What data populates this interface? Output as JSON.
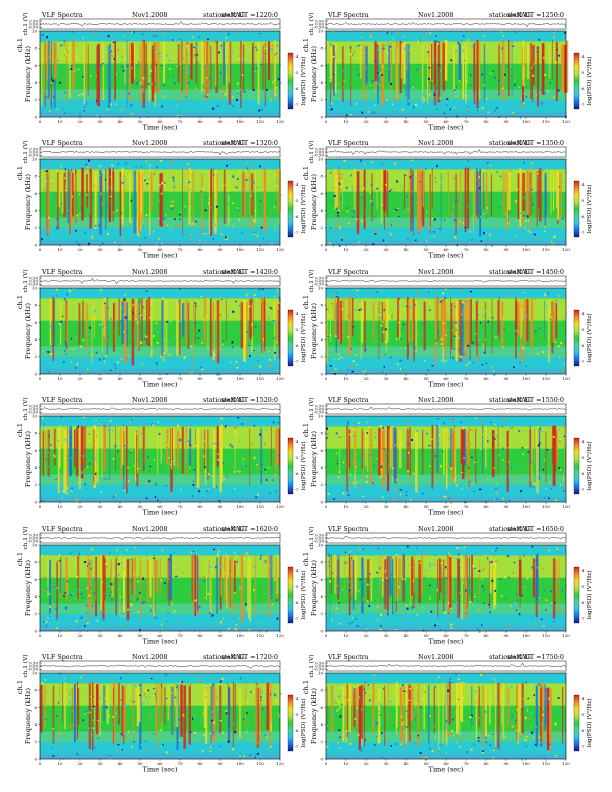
{
  "chart_data": [
    {
      "type": "heatmap",
      "title": {
        "label": "VLF  Spectra",
        "date": "Nov1.2008",
        "station": "station=KAG",
        "start": "start  UT  =1220:0"
      },
      "xlabel": "Time  (sec)",
      "ylabel": "Frequency  (kHz)",
      "ylabel_top": "ch.1",
      "top_ylabel": "ch.1 (V)",
      "top_ticks": [
        "0.50",
        "0.00",
        "-0.50"
      ],
      "xlim": [
        0,
        120
      ],
      "ylim": [
        0,
        10
      ],
      "colorbar_label": "log(PSD) (V²/Hz)",
      "colorbar_ticks": [
        "-4",
        "-5",
        "-6",
        "-7"
      ],
      "colormap": [
        "#0a1a9a",
        "#1f6fe0",
        "#27c7f0",
        "#52d09a",
        "#2ecc40",
        "#b8e23a",
        "#f0e020",
        "#f08a20",
        "#d62020"
      ]
    },
    {
      "type": "heatmap",
      "title": {
        "label": "VLF  Spectra",
        "date": "Nov1.2008",
        "station": "station=KAG",
        "start": "start  UT  =1250:0"
      },
      "xlabel": "Time  (sec)",
      "ylabel": "Frequency  (kHz)",
      "ylabel_top": "ch.1",
      "top_ylabel": "ch.1 (V)",
      "top_ticks": [
        "0.50",
        "0.00",
        "-0.50"
      ],
      "xlim": [
        0,
        120
      ],
      "ylim": [
        0,
        10
      ],
      "colorbar_label": "log(PSD) (V²/Hz)",
      "colorbar_ticks": [
        "-4",
        "-5",
        "-6",
        "-7"
      ],
      "colormap": [
        "#0a1a9a",
        "#1f6fe0",
        "#27c7f0",
        "#52d09a",
        "#2ecc40",
        "#b8e23a",
        "#f0e020",
        "#f08a20",
        "#d62020"
      ]
    },
    {
      "type": "heatmap",
      "title": {
        "label": "VLF  Spectra",
        "date": "Nov1.2008",
        "station": "station=KAG",
        "start": "start  UT  =1320:0"
      },
      "xlabel": "Time  (sec)",
      "ylabel": "Frequency  (kHz)",
      "ylabel_top": "ch.1",
      "top_ylabel": "ch.1 (V)",
      "top_ticks": [
        "0.50",
        "0.00",
        "-0.50"
      ],
      "xlim": [
        0,
        120
      ],
      "ylim": [
        0,
        10
      ],
      "colorbar_label": "log(PSD) (V²/Hz)",
      "colorbar_ticks": [
        "-4",
        "-5",
        "-6",
        "-7"
      ],
      "colormap": [
        "#0a1a9a",
        "#1f6fe0",
        "#27c7f0",
        "#52d09a",
        "#2ecc40",
        "#b8e23a",
        "#f0e020",
        "#f08a20",
        "#d62020"
      ]
    },
    {
      "type": "heatmap",
      "title": {
        "label": "VLF  Spectra",
        "date": "Nov1.2008",
        "station": "station=KAG",
        "start": "start  UT  =1350:0"
      },
      "xlabel": "Time  (sec)",
      "ylabel": "Frequency  (kHz)",
      "ylabel_top": "ch.1",
      "top_ylabel": "ch.1 (V)",
      "top_ticks": [
        "0.50",
        "0.00",
        "-0.50"
      ],
      "xlim": [
        0,
        120
      ],
      "ylim": [
        0,
        10
      ],
      "colorbar_label": "log(PSD) (V²/Hz)",
      "colorbar_ticks": [
        "-4",
        "-5",
        "-6",
        "-7"
      ],
      "colormap": [
        "#0a1a9a",
        "#1f6fe0",
        "#27c7f0",
        "#52d09a",
        "#2ecc40",
        "#b8e23a",
        "#f0e020",
        "#f08a20",
        "#d62020"
      ]
    },
    {
      "type": "heatmap",
      "title": {
        "label": "VLF  Spectra",
        "date": "Nov1.2008",
        "station": "station=KAG",
        "start": "start  UT  =1420:0"
      },
      "xlabel": "Time  (sec)",
      "ylabel": "Frequency  (kHz)",
      "ylabel_top": "ch.1",
      "top_ylabel": "ch.1 (V)",
      "top_ticks": [
        "0.50",
        "0.00",
        "-0.50"
      ],
      "xlim": [
        0,
        120
      ],
      "ylim": [
        0,
        10
      ],
      "colorbar_label": "log(PSD) (V²/Hz)",
      "colorbar_ticks": [
        "-4",
        "-5",
        "-6",
        "-7"
      ],
      "colormap": [
        "#0a1a9a",
        "#1f6fe0",
        "#27c7f0",
        "#52d09a",
        "#2ecc40",
        "#b8e23a",
        "#f0e020",
        "#f08a20",
        "#d62020"
      ]
    },
    {
      "type": "heatmap",
      "title": {
        "label": "VLF  Spectra",
        "date": "Nov1.2008",
        "station": "station=KAG",
        "start": "start  UT  =1450:0"
      },
      "xlabel": "Time  (sec)",
      "ylabel": "Frequency  (kHz)",
      "ylabel_top": "ch.1",
      "top_ylabel": "ch.1 (V)",
      "top_ticks": [
        "0.50",
        "0.00",
        "-0.50"
      ],
      "xlim": [
        0,
        120
      ],
      "ylim": [
        0,
        10
      ],
      "colorbar_label": "log(PSD) (V²/Hz)",
      "colorbar_ticks": [
        "-4",
        "-5",
        "-6",
        "-7"
      ],
      "colormap": [
        "#0a1a9a",
        "#1f6fe0",
        "#27c7f0",
        "#52d09a",
        "#2ecc40",
        "#b8e23a",
        "#f0e020",
        "#f08a20",
        "#d62020"
      ]
    },
    {
      "type": "heatmap",
      "title": {
        "label": "VLF  Spectra",
        "date": "Nov1.2008",
        "station": "station=KAG",
        "start": "start  UT  =1520:0"
      },
      "xlabel": "Time  (sec)",
      "ylabel": "Frequency  (kHz)",
      "ylabel_top": "ch.1",
      "top_ylabel": "ch.1 (V)",
      "top_ticks": [
        "0.50",
        "0.00",
        "-0.50"
      ],
      "xlim": [
        0,
        120
      ],
      "ylim": [
        0,
        10
      ],
      "colorbar_label": "log(PSD) (V²/Hz)",
      "colorbar_ticks": [
        "-4",
        "-5",
        "-6",
        "-7"
      ],
      "colormap": [
        "#0a1a9a",
        "#1f6fe0",
        "#27c7f0",
        "#52d09a",
        "#2ecc40",
        "#b8e23a",
        "#f0e020",
        "#f08a20",
        "#d62020"
      ]
    },
    {
      "type": "heatmap",
      "title": {
        "label": "VLF  Spectra",
        "date": "Nov1.2008",
        "station": "station=KAG",
        "start": "start  UT  =1550:0"
      },
      "xlabel": "Time  (sec)",
      "ylabel": "Frequency  (kHz)",
      "ylabel_top": "ch.1",
      "top_ylabel": "ch.1 (V)",
      "top_ticks": [
        "0.50",
        "0.00",
        "-0.50"
      ],
      "xlim": [
        0,
        120
      ],
      "ylim": [
        0,
        10
      ],
      "colorbar_label": "log(PSD) (V²/Hz)",
      "colorbar_ticks": [
        "-4",
        "-5",
        "-6",
        "-7"
      ],
      "colormap": [
        "#0a1a9a",
        "#1f6fe0",
        "#27c7f0",
        "#52d09a",
        "#2ecc40",
        "#b8e23a",
        "#f0e020",
        "#f08a20",
        "#d62020"
      ]
    },
    {
      "type": "heatmap",
      "title": {
        "label": "VLF  Spectra",
        "date": "Nov1.2008",
        "station": "station=KAG",
        "start": "start  UT  =1620:0"
      },
      "xlabel": "Time  (sec)",
      "ylabel": "Frequency  (kHz)",
      "ylabel_top": "ch.1",
      "top_ylabel": "ch.1 (V)",
      "top_ticks": [
        "0.50",
        "0.00",
        "-0.50"
      ],
      "xlim": [
        0,
        120
      ],
      "ylim": [
        0,
        10
      ],
      "colorbar_label": "log(PSD) (V²/Hz)",
      "colorbar_ticks": [
        "-4",
        "-5",
        "-6",
        "-7"
      ],
      "colormap": [
        "#0a1a9a",
        "#1f6fe0",
        "#27c7f0",
        "#52d09a",
        "#2ecc40",
        "#b8e23a",
        "#f0e020",
        "#f08a20",
        "#d62020"
      ]
    },
    {
      "type": "heatmap",
      "title": {
        "label": "VLF  Spectra",
        "date": "Nov1.2008",
        "station": "station=KAG",
        "start": "start  UT  =1650:0"
      },
      "xlabel": "Time  (sec)",
      "ylabel": "Frequency  (kHz)",
      "ylabel_top": "ch.1",
      "top_ylabel": "ch.1 (V)",
      "top_ticks": [
        "0.50",
        "0.00",
        "-0.50"
      ],
      "xlim": [
        0,
        120
      ],
      "ylim": [
        0,
        10
      ],
      "colorbar_label": "log(PSD) (V²/Hz)",
      "colorbar_ticks": [
        "-4",
        "-5",
        "-6",
        "-7"
      ],
      "colormap": [
        "#0a1a9a",
        "#1f6fe0",
        "#27c7f0",
        "#52d09a",
        "#2ecc40",
        "#b8e23a",
        "#f0e020",
        "#f08a20",
        "#d62020"
      ]
    },
    {
      "type": "heatmap",
      "title": {
        "label": "VLF  Spectra",
        "date": "Nov1.2008",
        "station": "station=KAG",
        "start": "start  UT  =1720:0"
      },
      "xlabel": "Time  (sec)",
      "ylabel": "Frequency  (kHz)",
      "ylabel_top": "ch.1",
      "top_ylabel": "ch.1 (V)",
      "top_ticks": [
        "0.50",
        "0.00",
        "-0.50"
      ],
      "xlim": [
        0,
        120
      ],
      "ylim": [
        0,
        10
      ],
      "colorbar_label": "log(PSD) (V²/Hz)",
      "colorbar_ticks": [
        "-4",
        "-5",
        "-6",
        "-7"
      ],
      "colormap": [
        "#0a1a9a",
        "#1f6fe0",
        "#27c7f0",
        "#52d09a",
        "#2ecc40",
        "#b8e23a",
        "#f0e020",
        "#f08a20",
        "#d62020"
      ]
    },
    {
      "type": "heatmap",
      "title": {
        "label": "VLF  Spectra",
        "date": "Nov1.2008",
        "station": "station=KAG",
        "start": "start  UT  =1750:0"
      },
      "xlabel": "Time  (sec)",
      "ylabel": "Frequency  (kHz)",
      "ylabel_top": "ch.1",
      "top_ylabel": "ch.1 (V)",
      "top_ticks": [
        "0.50",
        "0.00",
        "-0.50"
      ],
      "xlim": [
        0,
        120
      ],
      "ylim": [
        0,
        10
      ],
      "colorbar_label": "log(PSD) (V²/Hz)",
      "colorbar_ticks": [
        "-4",
        "-5",
        "-6",
        "-7"
      ],
      "colormap": [
        "#0a1a9a",
        "#1f6fe0",
        "#27c7f0",
        "#52d09a",
        "#2ecc40",
        "#b8e23a",
        "#f0e020",
        "#f08a20",
        "#d62020"
      ]
    }
  ]
}
